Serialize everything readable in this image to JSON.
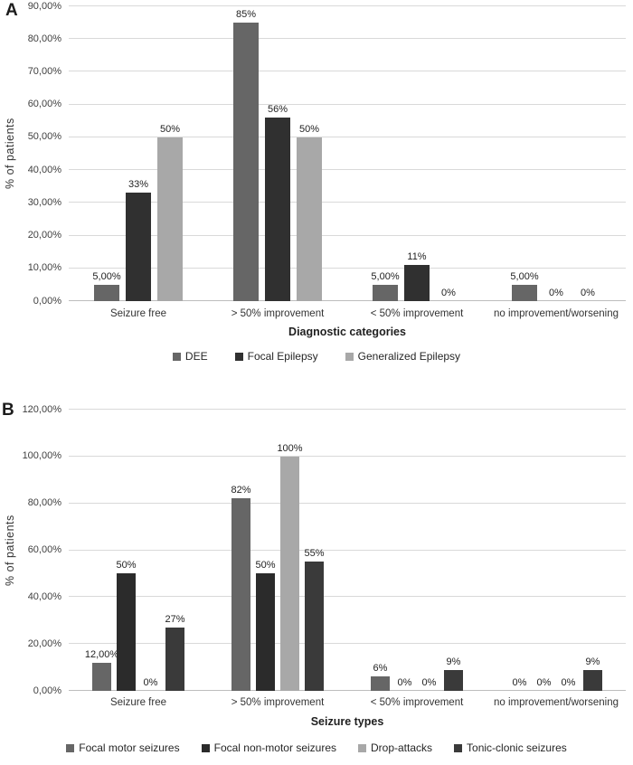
{
  "figure": {
    "background": "#ffffff"
  },
  "chart_data": [
    {
      "type": "bar",
      "panel_label": "A",
      "xlabel": "Diagnostic categories",
      "ylabel": "% of patients",
      "ylim": [
        0,
        90
      ],
      "ytick_step": 10,
      "ytick_labels": [
        "0,00%",
        "10,00%",
        "20,00%",
        "30,00%",
        "40,00%",
        "50,00%",
        "60,00%",
        "70,00%",
        "80,00%",
        "90,00%"
      ],
      "grid": true,
      "legend_position": "bottom",
      "categories": [
        "Seizure free",
        "> 50% improvement",
        "< 50% improvement",
        "no improvement/worsening"
      ],
      "series": [
        {
          "name": "DEE",
          "color": "#666666",
          "values": [
            5,
            85,
            5,
            5
          ],
          "value_labels": [
            "5,00%",
            "85%",
            "5,00%",
            "5,00%"
          ]
        },
        {
          "name": "Focal Epilepsy",
          "color": "#303030",
          "values": [
            33,
            56,
            11,
            0
          ],
          "value_labels": [
            "33%",
            "56%",
            "11%",
            "0%"
          ]
        },
        {
          "name": "Generalized Epilepsy",
          "color": "#a8a8a8",
          "values": [
            50,
            50,
            0,
            0
          ],
          "value_labels": [
            "50%",
            "50%",
            "0%",
            "0%"
          ]
        }
      ]
    },
    {
      "type": "bar",
      "panel_label": "B",
      "xlabel": "Seizure types",
      "ylabel": "% of patients",
      "ylim": [
        0,
        120
      ],
      "ytick_step": 20,
      "ytick_labels": [
        "0,00%",
        "20,00%",
        "40,00%",
        "60,00%",
        "80,00%",
        "100,00%",
        "120,00%"
      ],
      "grid": true,
      "legend_position": "bottom",
      "categories": [
        "Seizure free",
        "> 50% improvement",
        "< 50% improvement",
        "no improvement/worsening"
      ],
      "series": [
        {
          "name": "Focal motor seizures",
          "color": "#666666",
          "values": [
            12,
            82,
            6,
            0
          ],
          "value_labels": [
            "12,00%",
            "82%",
            "6%",
            "0%"
          ]
        },
        {
          "name": "Focal non-motor seizures",
          "color": "#2b2b2b",
          "values": [
            50,
            50,
            0,
            0
          ],
          "value_labels": [
            "50%",
            "50%",
            "0%",
            "0%"
          ]
        },
        {
          "name": "Drop-attacks",
          "color": "#a8a8a8",
          "values": [
            0,
            100,
            0,
            0
          ],
          "value_labels": [
            "0%",
            "100%",
            "0%",
            "0%"
          ]
        },
        {
          "name": "Tonic-clonic seizures",
          "color": "#3a3a3a",
          "values": [
            27,
            55,
            9,
            9
          ],
          "value_labels": [
            "27%",
            "55%",
            "9%",
            "9%"
          ]
        }
      ]
    }
  ]
}
